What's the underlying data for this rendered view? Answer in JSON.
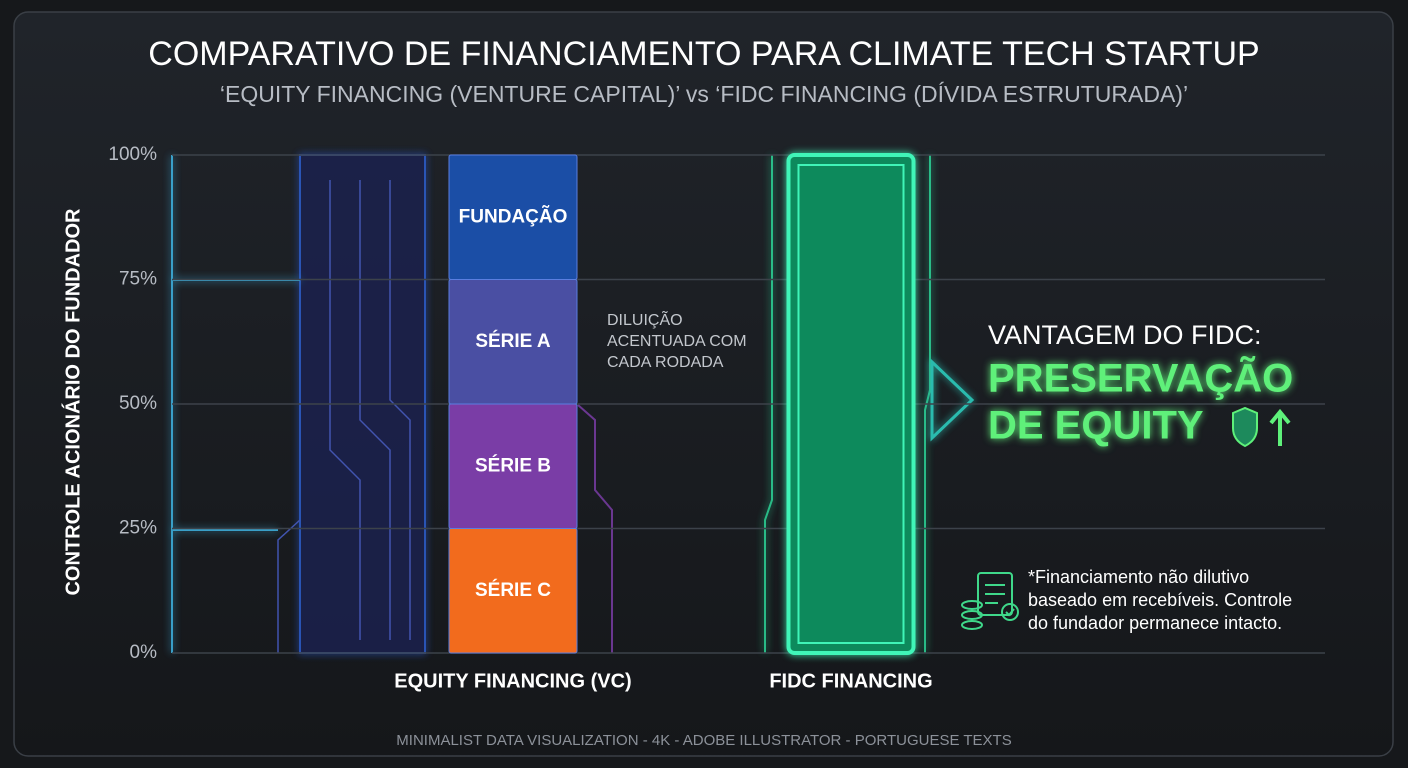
{
  "chart_data": {
    "type": "bar",
    "title": "COMPARATIVO DE FINANCIAMENTO PARA CLIMATE TECH STARTUP",
    "subtitle": "‘EQUITY FINANCING (VENTURE CAPITAL)’ vs ‘FIDC FINANCING (DÍVIDA ESTRUTURADA)’",
    "y_label": "CONTROLE ACIONÁRIO DO FUNDADOR",
    "categories": [
      "EQUITY FINANCING (VC)",
      "FIDC FINANCING"
    ],
    "stacked": true,
    "series": [
      {
        "name": "SÉRIE C",
        "color": "#f26b1d",
        "values": [
          25,
          null
        ]
      },
      {
        "name": "SÉRIE B",
        "color": "#7a3da6",
        "values": [
          25,
          null
        ]
      },
      {
        "name": "SÉRIE A",
        "color": "#4a4fa3",
        "values": [
          25,
          null
        ]
      },
      {
        "name": "FUNDAÇÃO",
        "color": "#1b4ea6",
        "values": [
          25,
          null
        ]
      },
      {
        "color": "#0d8a5c",
        "values": [
          null,
          100
        ]
      }
    ],
    "ylim": [
      0,
      100
    ],
    "yticks": [
      {
        "value": 0,
        "label": "0%"
      },
      {
        "value": 25,
        "label": "25%"
      },
      {
        "value": 50,
        "label": "50%"
      },
      {
        "value": 75,
        "label": "75%"
      },
      {
        "value": 100,
        "label": "100%"
      }
    ],
    "grid": true,
    "annotations": {
      "dilution": [
        "DILUIÇÃO",
        "ACENTUADA COM",
        "CADA RODADA"
      ],
      "advantage_heading": "VANTAGEM DO FIDC:",
      "advantage": [
        "PRESERVAÇÃO",
        "DE EQUITY"
      ],
      "footnote": [
        "*Financiamento não dilutivo",
        "baseado em recebíveis. Controle",
        "do fundador permanece intacto."
      ],
      "footer": "MINIMALIST DATA VISUALIZATION - 4K - ADOBE ILLUSTRATOR - PORTUGUESE TEXTS"
    }
  }
}
